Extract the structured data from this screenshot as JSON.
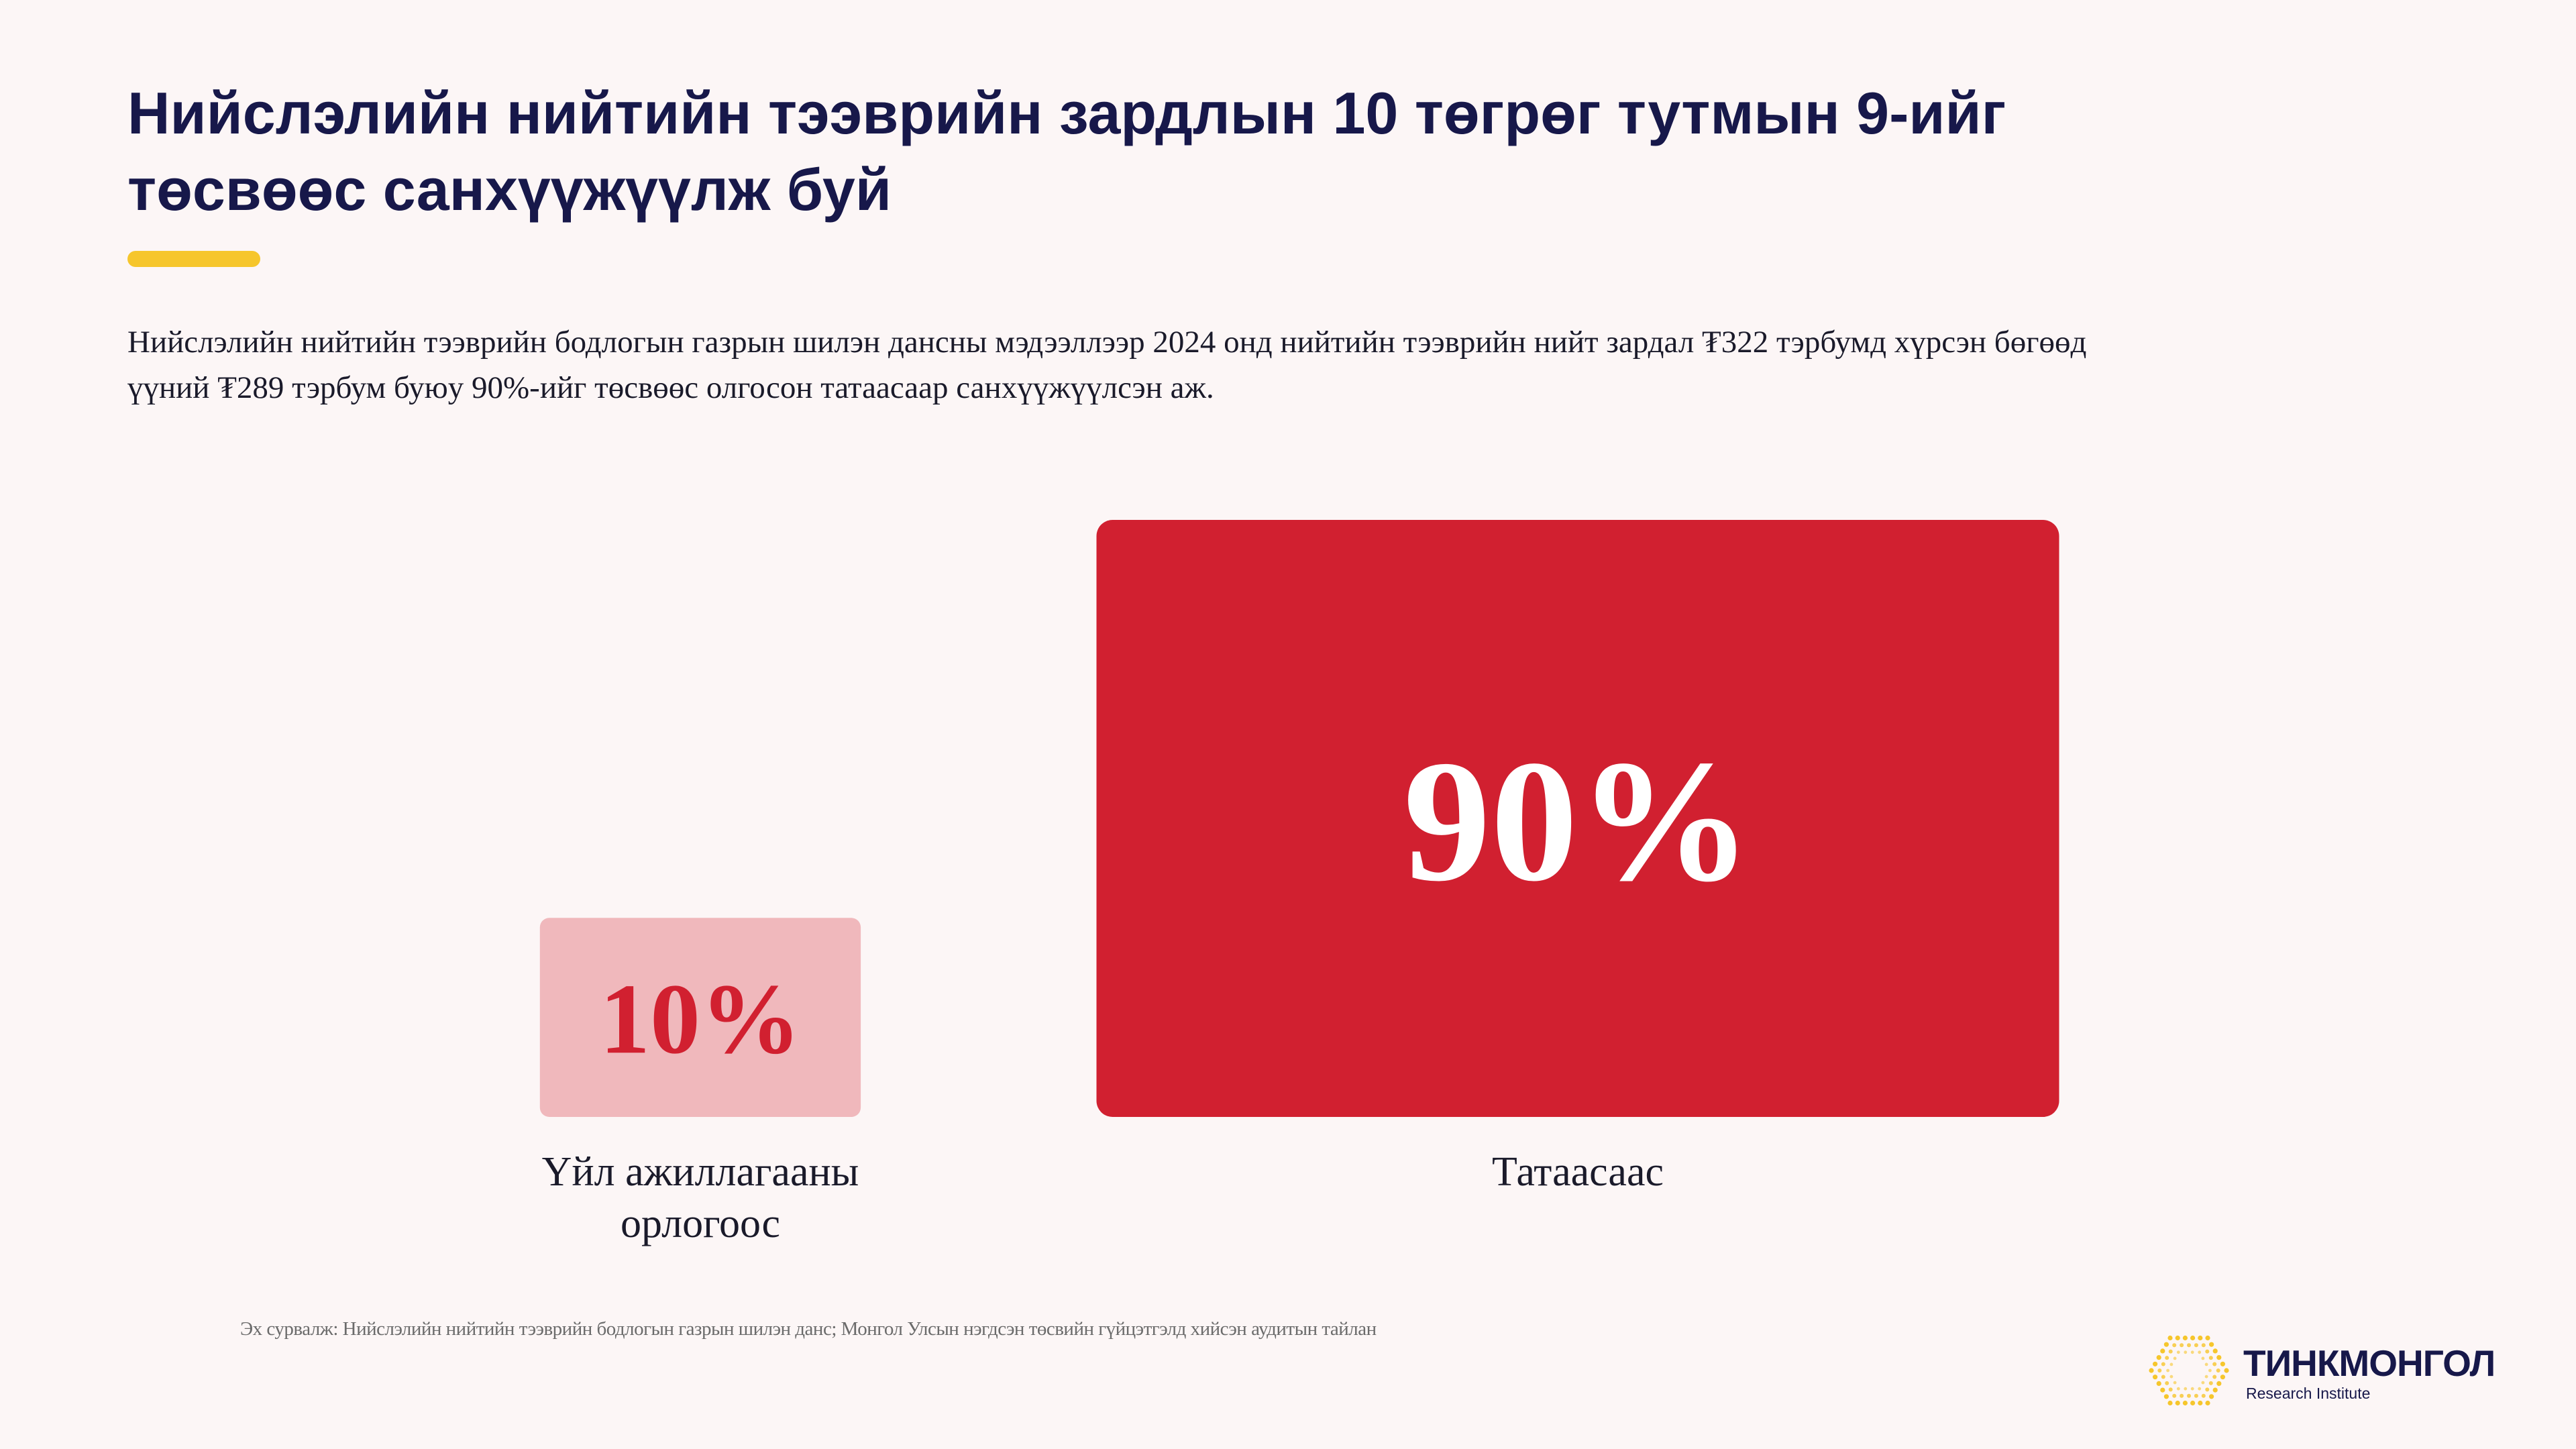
{
  "header": {
    "title_lines": [
      "Нийслэлийн нийтийн тээврийн зардлын 10 төгрөг тутмын 9-ийг",
      "төсвөөс санхүүжүүлж буй"
    ],
    "subtitle_lines": [
      "Нийслэлийн нийтийн тээврийн бодлогын газрын шилэн дансны мэдээллээр 2024 онд нийтийн тээврийн нийт зардал ₮322 тэрбумд хүрсэн бөгөөд",
      "үүний ₮289 тэрбум буюу 90%-ийг төсвөөс олгосон татаасаар санхүүжүүлсэн аж."
    ]
  },
  "chart_data": {
    "type": "bar",
    "categories": [
      "Үйл ажиллагааны орлогоос",
      "Татаасаас"
    ],
    "category_lines": [
      [
        "Үйл ажиллагааны",
        "орлогоос"
      ],
      [
        "Татаасаас"
      ]
    ],
    "values": [
      10,
      90
    ],
    "value_labels": [
      "10%",
      "90%"
    ],
    "unit": "%",
    "colors": [
      "#f0b8bc",
      "#d12030"
    ],
    "label_colors": [
      "#d12030",
      "#ffffff"
    ],
    "ylim": [
      0,
      100
    ],
    "grid": false,
    "legend": "none"
  },
  "footer": {
    "source": "Эх сурвалж: Нийслэлийн нийтийн тээврийн бодлогын газрын шилэн данс; Монгол Улсын нэгдсэн төсвийн гүйцэтгэлд хийсэн аудитын тайлан"
  },
  "logo": {
    "name": "ТИНКМОНГОЛ",
    "subtitle": "Research Institute",
    "mark_icon": "hexagon-dots-icon"
  },
  "colors": {
    "background": "#fcf6f6",
    "title": "#17184a",
    "accent": "#f6c62c"
  }
}
